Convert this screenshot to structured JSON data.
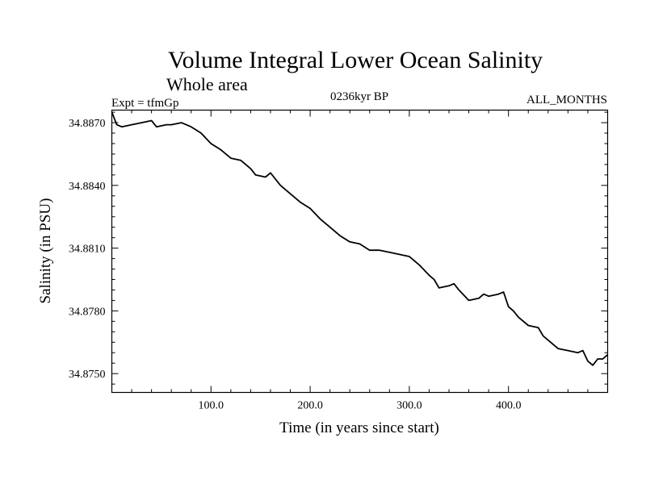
{
  "chart_data": {
    "type": "line",
    "title": "Volume Integral Lower Ocean Salinity",
    "subtitle": "Whole area",
    "experiment": "Expt = tfmGp",
    "period": "0236kyr BP",
    "months": "ALL_MONTHS",
    "xlabel": "Time (in years since start)",
    "ylabel": "Salinity (in PSU)",
    "xlim": [
      0,
      500
    ],
    "ylim": [
      34.8741,
      34.8876
    ],
    "xticks": [
      100,
      200,
      300,
      400
    ],
    "xtick_labels": [
      "100.0",
      "200.0",
      "300.0",
      "400.0"
    ],
    "yticks": [
      34.875,
      34.878,
      34.881,
      34.884,
      34.887
    ],
    "ytick_labels": [
      "34.8750",
      "34.8780",
      "34.8810",
      "34.8840",
      "34.8870"
    ],
    "line_color": "#000000",
    "series": [
      {
        "x": [
          0,
          5,
          10,
          20,
          30,
          40,
          45,
          55,
          60,
          70,
          75,
          80,
          90,
          100,
          110,
          120,
          130,
          140,
          145,
          155,
          160,
          170,
          180,
          190,
          200,
          210,
          220,
          230,
          240,
          250,
          260,
          270,
          280,
          290,
          300,
          310,
          320,
          325,
          330,
          340,
          345,
          350,
          360,
          370,
          375,
          380,
          390,
          395,
          400,
          405,
          410,
          420,
          430,
          435,
          440,
          450,
          460,
          470,
          475,
          480,
          485,
          490,
          495,
          500
        ],
        "y": [
          34.8875,
          34.8869,
          34.8868,
          34.8869,
          34.887,
          34.8871,
          34.8868,
          34.8869,
          34.8869,
          34.887,
          34.8869,
          34.8868,
          34.8865,
          34.886,
          34.8857,
          34.8853,
          34.8852,
          34.8848,
          34.8845,
          34.8844,
          34.8846,
          34.884,
          34.8836,
          34.8832,
          34.8829,
          34.8824,
          34.882,
          34.8816,
          34.8813,
          34.8812,
          34.8809,
          34.8809,
          34.8808,
          34.8807,
          34.8806,
          34.8802,
          34.8797,
          34.8795,
          34.8791,
          34.8792,
          34.8793,
          34.879,
          34.8785,
          34.8786,
          34.8788,
          34.8787,
          34.8788,
          34.8789,
          34.8782,
          34.878,
          34.8777,
          34.8773,
          34.8772,
          34.8768,
          34.8766,
          34.8762,
          34.8761,
          34.876,
          34.8761,
          34.8756,
          34.8754,
          34.8757,
          34.8757,
          34.8759
        ]
      }
    ]
  }
}
